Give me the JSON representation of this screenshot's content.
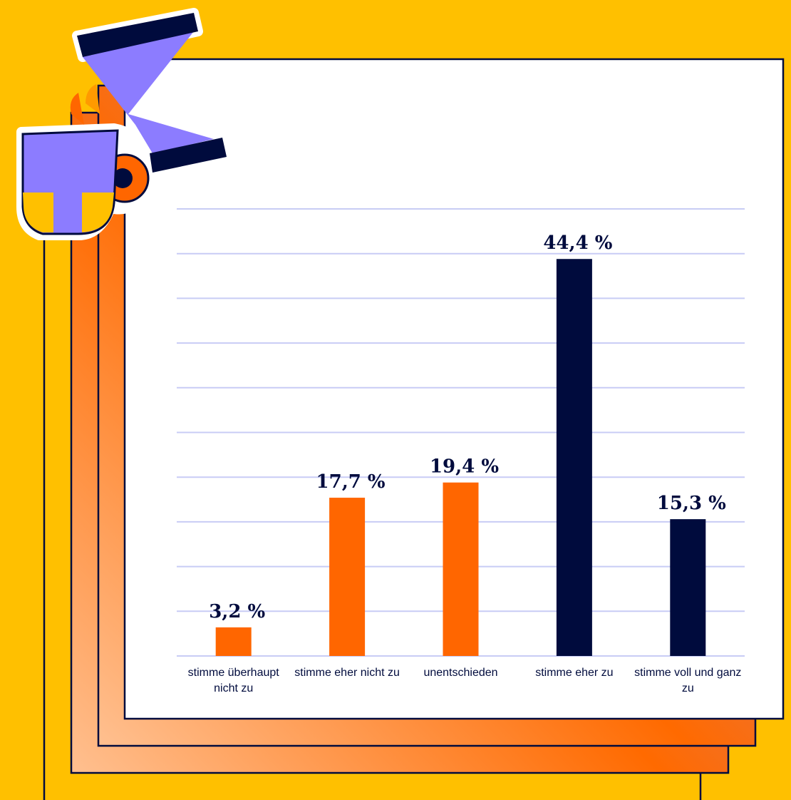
{
  "chart_data": {
    "type": "bar",
    "categories": [
      "stimme überhaupt nicht zu",
      "stimme eher nicht zu",
      "unentschieden",
      "stimme eher zu",
      "stimme voll und ganz zu"
    ],
    "values": [
      3.2,
      17.7,
      19.4,
      44.4,
      15.3
    ],
    "value_labels": [
      "3,2 %",
      "17,7 %",
      "19,4 %",
      "44,4 %",
      "15,3 %"
    ],
    "colors": [
      "#ff6600",
      "#ff6600",
      "#ff6600",
      "#000b3d",
      "#000b3d"
    ],
    "ylim": [
      0,
      50
    ],
    "yticks": [
      0,
      5,
      10,
      15,
      20,
      25,
      30,
      35,
      40,
      45,
      50
    ],
    "grid": true
  }
}
